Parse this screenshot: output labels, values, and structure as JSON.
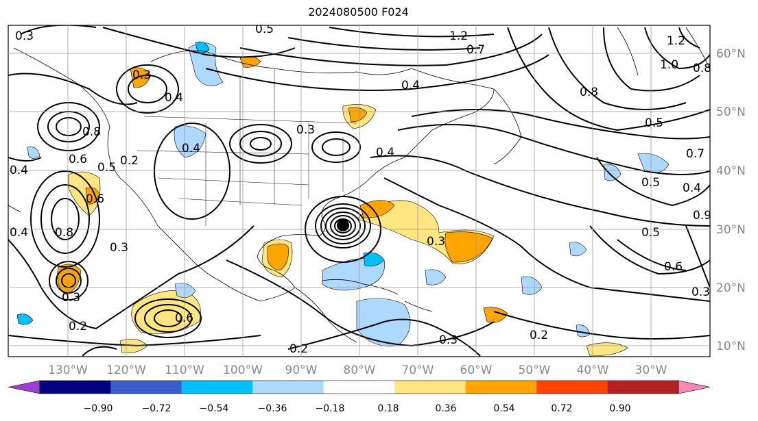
{
  "title": "2024080500 F024",
  "longitude_labels": [
    "130°W",
    "120°W",
    "110°W",
    "100°W",
    "90°W",
    "80°W",
    "70°W",
    "60°W",
    "50°W",
    "40°W",
    "30°W"
  ],
  "latitude_labels": [
    "60°N",
    "50°N",
    "40°N",
    "30°N",
    "20°N",
    "10°N"
  ],
  "colorbar": {
    "tick_labels": [
      "−0.90",
      "−0.72",
      "−0.54",
      "−0.36",
      "−0.18",
      "0.18",
      "0.36",
      "0.54",
      "0.72",
      "0.90"
    ],
    "colors": [
      "#9b3fcf",
      "#000080",
      "#3a5fcd",
      "#00bfff",
      "#add8ff",
      "#ffffff",
      "#ffe680",
      "#ffa500",
      "#ff4500",
      "#b22222",
      "#ff88b4"
    ]
  },
  "contour_labels": [
    "0.3",
    "0.5",
    "1.2",
    "0.7",
    "0.3",
    "0.4",
    "0.8",
    "1.0",
    "1.2",
    "0.4",
    "0.6",
    "0.2",
    "0.5",
    "0.4",
    "0.3",
    "0.4",
    "0.4",
    "0.8",
    "0.3",
    "0.4",
    "0.6",
    "0.8",
    "0.3",
    "0.2",
    "0.6",
    "0.3",
    "0.5",
    "0.2",
    "0.2",
    "0.3",
    "0.5",
    "0.6",
    "0.3",
    "0.7",
    "0.4",
    "0.5",
    "0.9",
    "0.8"
  ],
  "chart_data": {
    "type": "map",
    "title": "2024080500 F024",
    "lon_range": [
      "140°W",
      "20°W"
    ],
    "lat_range": [
      "7°N",
      "65°N"
    ],
    "storm_center": {
      "lon": "81°W",
      "lat": "30.5°N"
    },
    "gridlines": true
  }
}
